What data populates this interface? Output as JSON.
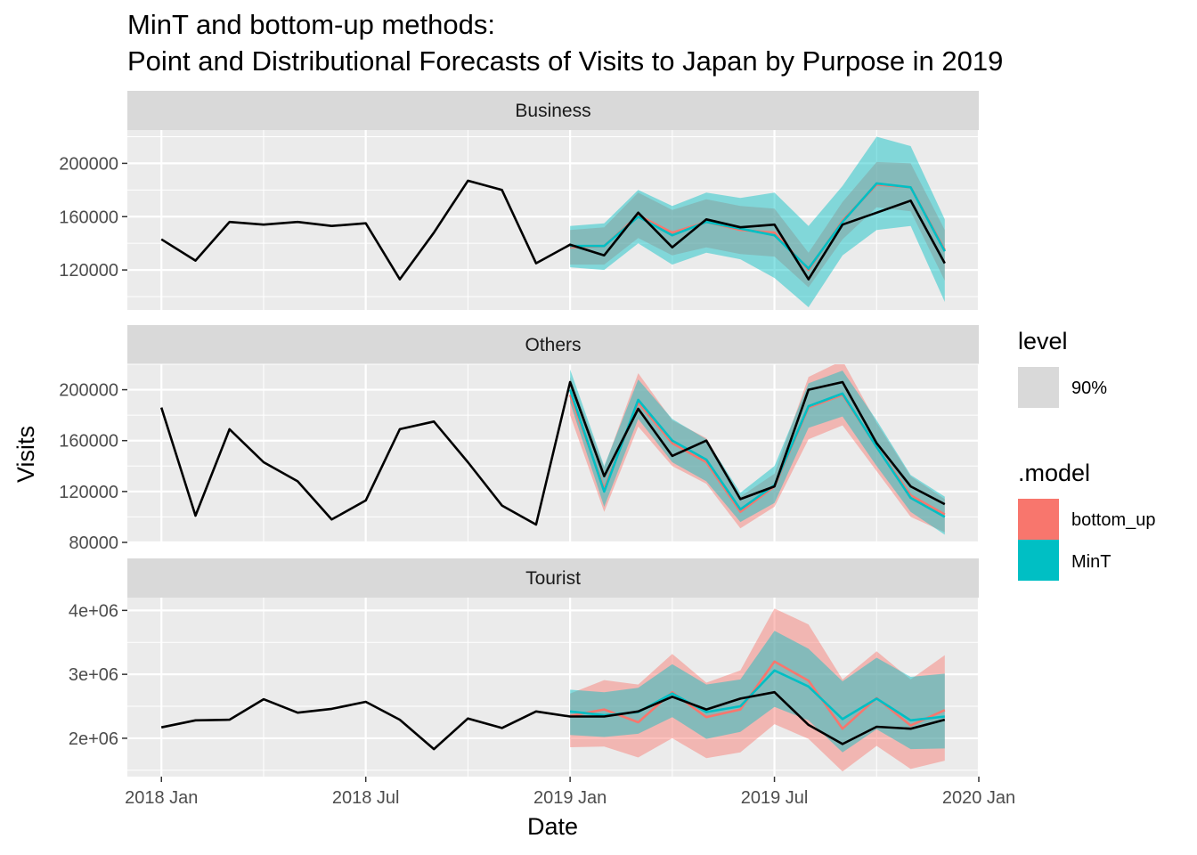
{
  "chart_data": {
    "type": "line",
    "title": "MinT and bottom-up methods:",
    "subtitle": "Point and Distributional Forecasts of Visits to Japan by Purpose in 2019",
    "xlabel": "Date",
    "ylabel": "Visits",
    "x_ticks": [
      "2018 Jan",
      "2018 Jul",
      "2019 Jan",
      "2019 Jul",
      "2020 Jan"
    ],
    "x_range": [
      "2017-12",
      "2020-01"
    ],
    "grid": true,
    "legend_position": "right",
    "colors": {
      "actual": "#000000",
      "bottom_up": "#F8766D",
      "MinT": "#00BFC4",
      "panel_bg": "#EBEBEB",
      "strip_bg": "#D9D9D9",
      "grid": "#FFFFFF"
    },
    "legend": {
      "level_title": "level",
      "level_label": "90%",
      "model_title": ".model",
      "model_labels": [
        "bottom_up",
        "MinT"
      ]
    },
    "forecast_months": [
      "2019-01",
      "2019-02",
      "2019-03",
      "2019-04",
      "2019-05",
      "2019-06",
      "2019-07",
      "2019-08",
      "2019-09",
      "2019-10",
      "2019-11",
      "2019-12"
    ],
    "panels": [
      {
        "label": "Business",
        "y_range": [
          90000,
          225000
        ],
        "y_ticks": [
          120000,
          160000,
          200000
        ],
        "y_tick_labels": [
          "120000",
          "160000",
          "200000"
        ],
        "actual": {
          "x": [
            "2018-01",
            "2018-02",
            "2018-03",
            "2018-04",
            "2018-05",
            "2018-06",
            "2018-07",
            "2018-08",
            "2018-09",
            "2018-10",
            "2018-11",
            "2018-12",
            "2019-01",
            "2019-02",
            "2019-03",
            "2019-04",
            "2019-05",
            "2019-06",
            "2019-07",
            "2019-08",
            "2019-09",
            "2019-10",
            "2019-11",
            "2019-12"
          ],
          "y": [
            143000,
            127000,
            156000,
            154000,
            156000,
            153000,
            155000,
            113000,
            148000,
            187000,
            180000,
            125000,
            139000,
            131000,
            163000,
            137000,
            158000,
            152000,
            154000,
            113000,
            154000,
            163000,
            172000,
            125000
          ]
        },
        "series": [
          {
            "name": "bottom_up",
            "point": [
              137000,
              138000,
              161000,
              148000,
              156000,
              150000,
              148000,
              120000,
              157000,
              184000,
              182000,
              135000
            ],
            "lower": [
              124000,
              124000,
              144000,
              131000,
              137000,
              132000,
              130000,
              107000,
              143000,
              167000,
              164000,
              112000
            ],
            "upper": [
              150000,
              152000,
              178000,
              165000,
              173000,
              168000,
              166000,
              133000,
              171000,
              201000,
              200000,
              150000
            ]
          },
          {
            "name": "MinT",
            "point": [
              138000,
              138000,
              160000,
              146000,
              156000,
              151000,
              146000,
              121000,
              156000,
              185000,
              182000,
              134000
            ],
            "lower": [
              122000,
              120000,
              140000,
              124000,
              133000,
              128000,
              114000,
              92000,
              131000,
              150000,
              153000,
              96000
            ],
            "upper": [
              153000,
              155000,
              180000,
              168000,
              178000,
              174000,
              178000,
              153000,
              183000,
              220000,
              213000,
              158000
            ]
          }
        ]
      },
      {
        "label": "Others",
        "y_range": [
          80000,
          220000
        ],
        "y_ticks": [
          80000,
          120000,
          160000,
          200000
        ],
        "y_tick_labels": [
          "80000",
          "120000",
          "160000",
          "200000"
        ],
        "actual": {
          "x": [
            "2018-01",
            "2018-02",
            "2018-03",
            "2018-04",
            "2018-05",
            "2018-06",
            "2018-07",
            "2018-08",
            "2018-09",
            "2018-10",
            "2018-11",
            "2018-12",
            "2019-01",
            "2019-02",
            "2019-03",
            "2019-04",
            "2019-05",
            "2019-06",
            "2019-07",
            "2019-08",
            "2019-09",
            "2019-10",
            "2019-11",
            "2019-12"
          ],
          "y": [
            186000,
            101000,
            169000,
            143000,
            128000,
            98000,
            113000,
            169000,
            175000,
            143000,
            109000,
            94000,
            206000,
            132000,
            185000,
            148000,
            160000,
            114000,
            124000,
            200000,
            206000,
            158000,
            124000,
            110000
          ]
        },
        "series": [
          {
            "name": "bottom_up",
            "point": [
              196000,
              122000,
              190000,
              158000,
              143000,
              104000,
              124000,
              186000,
              196000,
              155000,
              117000,
              102000
            ],
            "lower": [
              180000,
              104000,
              171000,
              140000,
              126000,
              91000,
              108000,
              161000,
              172000,
              136000,
              100000,
              88000
            ],
            "upper": [
              210000,
              139000,
              213000,
              176000,
              162000,
              116000,
              134000,
              210000,
              223000,
              174000,
              132000,
              114000
            ]
          },
          {
            "name": "MinT",
            "point": [
              200000,
              120000,
              192000,
              160000,
              145000,
              106000,
              125000,
              187000,
              197000,
              155000,
              115000,
              100000
            ],
            "lower": [
              190000,
              108000,
              177000,
              143000,
              128000,
              96000,
              111000,
              170000,
              179000,
              140000,
              104000,
              86000
            ],
            "upper": [
              216000,
              140000,
              208000,
              177000,
              161000,
              119000,
              140000,
              205000,
              215000,
              176000,
              133000,
              116000
            ]
          }
        ]
      },
      {
        "label": "Tourist",
        "y_range": [
          1400000,
          4200000
        ],
        "y_ticks": [
          2000000,
          3000000,
          4000000
        ],
        "y_tick_labels": [
          "2e+06",
          "3e+06",
          "4e+06"
        ],
        "actual": {
          "x": [
            "2018-01",
            "2018-02",
            "2018-03",
            "2018-04",
            "2018-05",
            "2018-06",
            "2018-07",
            "2018-08",
            "2018-09",
            "2018-10",
            "2018-11",
            "2018-12",
            "2019-01",
            "2019-02",
            "2019-03",
            "2019-04",
            "2019-05",
            "2019-06",
            "2019-07",
            "2019-08",
            "2019-09",
            "2019-10",
            "2019-11",
            "2019-12"
          ],
          "y": [
            2170000,
            2280000,
            2290000,
            2610000,
            2400000,
            2460000,
            2570000,
            2290000,
            1830000,
            2310000,
            2160000,
            2420000,
            2340000,
            2340000,
            2420000,
            2650000,
            2450000,
            2620000,
            2720000,
            2210000,
            1910000,
            2180000,
            2150000,
            2290000
          ]
        },
        "series": [
          {
            "name": "bottom_up",
            "point": [
              2350000,
              2450000,
              2250000,
              2720000,
              2330000,
              2450000,
              3200000,
              2900000,
              2150000,
              2630000,
              2200000,
              2440000
            ],
            "lower": [
              1860000,
              1870000,
              1700000,
              2000000,
              1690000,
              1780000,
              2220000,
              1990000,
              1480000,
              1880000,
              1520000,
              1650000
            ],
            "upper": [
              2700000,
              2910000,
              2840000,
              3320000,
              2870000,
              3060000,
              4030000,
              3780000,
              2920000,
              3360000,
              2920000,
              3300000
            ]
          },
          {
            "name": "MinT",
            "point": [
              2420000,
              2360000,
              2410000,
              2700000,
              2410000,
              2500000,
              3060000,
              2810000,
              2300000,
              2620000,
              2280000,
              2340000
            ],
            "lower": [
              2050000,
              2020000,
              2070000,
              2330000,
              1990000,
              2100000,
              2490000,
              2280000,
              1780000,
              2140000,
              1830000,
              1840000
            ],
            "upper": [
              2760000,
              2720000,
              2790000,
              3160000,
              2840000,
              2920000,
              3680000,
              3400000,
              2890000,
              3260000,
              2960000,
              3010000
            ]
          }
        ]
      }
    ]
  }
}
